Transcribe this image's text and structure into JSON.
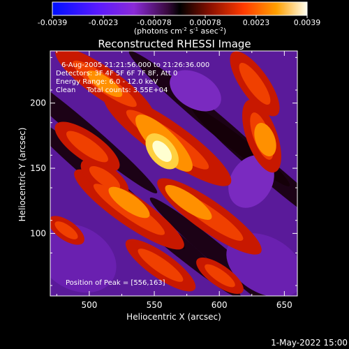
{
  "chart_data": {
    "type": "heatmap",
    "title": "Reconstructed RHESSI Image",
    "xlabel": "Heliocentric X (arcsec)",
    "ylabel": "Heliocentric Y (arcsec)",
    "xlim": [
      470,
      660
    ],
    "ylim": [
      52,
      240
    ],
    "x_ticks": [
      500,
      550,
      600,
      650
    ],
    "y_ticks": [
      100,
      150,
      200
    ],
    "colorbar": {
      "range": [
        -0.0039,
        0.0039
      ],
      "tick_labels": [
        "-0.0039",
        "-0.0023",
        "-0.00078",
        "0.00078",
        "0.0023",
        "0.0039"
      ],
      "units_prefix": "(photons cm",
      "units_exp1": "-2",
      "units_mid": " s",
      "units_exp2": "-1",
      "units_mid2": " asec",
      "units_exp3": "-2",
      "units_suffix": ")"
    },
    "annotations": {
      "time": "6-Aug-2005 21:21:56.000 to 21:26:36.000",
      "detectors": "Detectors: 3F 4F 5F 6F 7F 8F, Att 0",
      "energy": "Energy Range: 6.0 - 12.0 keV",
      "clean": "Clean     Total counts: 3.55E+04",
      "peak": "Position of Peak = [556,163]"
    },
    "peak": [
      556,
      163
    ],
    "footer": "1-May-2022 15:00"
  }
}
